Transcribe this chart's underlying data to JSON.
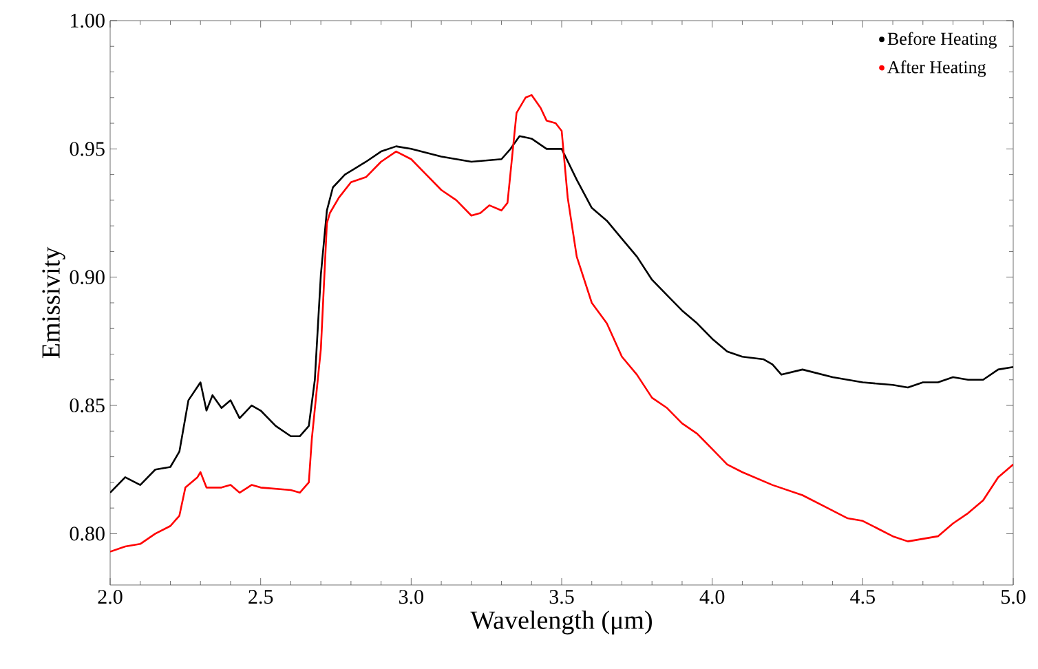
{
  "chart_data": {
    "type": "line",
    "xlabel": "Wavelength (μm)",
    "ylabel": "Emissivity",
    "xlim": [
      2.0,
      5.0
    ],
    "ylim": [
      0.78,
      1.0
    ],
    "xticks": [
      {
        "value": 2.0,
        "label": "2.0"
      },
      {
        "value": 2.5,
        "label": "2.5"
      },
      {
        "value": 3.0,
        "label": "3.0"
      },
      {
        "value": 3.5,
        "label": "3.5"
      },
      {
        "value": 4.0,
        "label": "4.0"
      },
      {
        "value": 4.5,
        "label": "4.5"
      },
      {
        "value": 5.0,
        "label": "5.0"
      }
    ],
    "yticks": [
      {
        "value": 0.8,
        "label": "0.80"
      },
      {
        "value": 0.85,
        "label": "0.85"
      },
      {
        "value": 0.9,
        "label": "0.90"
      },
      {
        "value": 0.95,
        "label": "0.95"
      },
      {
        "value": 1.0,
        "label": "1.00"
      }
    ],
    "grid": false,
    "legend": "top right",
    "marker": "none",
    "line_style": "solid",
    "series": [
      {
        "name": "Before Heating",
        "color": "#000000",
        "x": [
          2.0,
          2.05,
          2.1,
          2.15,
          2.2,
          2.23,
          2.26,
          2.3,
          2.32,
          2.34,
          2.37,
          2.4,
          2.43,
          2.47,
          2.5,
          2.55,
          2.6,
          2.63,
          2.66,
          2.68,
          2.7,
          2.72,
          2.74,
          2.78,
          2.85,
          2.9,
          2.95,
          3.0,
          3.1,
          3.2,
          3.3,
          3.33,
          3.36,
          3.4,
          3.45,
          3.5,
          3.55,
          3.6,
          3.65,
          3.7,
          3.75,
          3.8,
          3.85,
          3.9,
          3.95,
          4.0,
          4.05,
          4.1,
          4.17,
          4.2,
          4.23,
          4.3,
          4.4,
          4.5,
          4.6,
          4.65,
          4.7,
          4.75,
          4.8,
          4.85,
          4.9,
          4.95,
          5.0
        ],
        "values": [
          0.816,
          0.822,
          0.819,
          0.825,
          0.826,
          0.832,
          0.852,
          0.859,
          0.848,
          0.854,
          0.849,
          0.852,
          0.845,
          0.85,
          0.848,
          0.842,
          0.838,
          0.838,
          0.842,
          0.86,
          0.901,
          0.926,
          0.935,
          0.94,
          0.945,
          0.949,
          0.951,
          0.95,
          0.947,
          0.945,
          0.946,
          0.95,
          0.955,
          0.954,
          0.95,
          0.95,
          0.938,
          0.927,
          0.922,
          0.915,
          0.908,
          0.899,
          0.893,
          0.887,
          0.882,
          0.876,
          0.871,
          0.869,
          0.868,
          0.866,
          0.862,
          0.864,
          0.861,
          0.859,
          0.858,
          0.857,
          0.859,
          0.859,
          0.861,
          0.86,
          0.86,
          0.864,
          0.865
        ]
      },
      {
        "name": "After Heating",
        "color": "#ff0000",
        "x": [
          2.0,
          2.05,
          2.1,
          2.15,
          2.2,
          2.23,
          2.25,
          2.29,
          2.3,
          2.32,
          2.37,
          2.4,
          2.43,
          2.47,
          2.5,
          2.6,
          2.63,
          2.66,
          2.67,
          2.7,
          2.72,
          2.73,
          2.76,
          2.8,
          2.85,
          2.9,
          2.95,
          3.0,
          3.05,
          3.1,
          3.15,
          3.2,
          3.23,
          3.26,
          3.3,
          3.32,
          3.35,
          3.38,
          3.4,
          3.43,
          3.45,
          3.48,
          3.5,
          3.52,
          3.55,
          3.6,
          3.65,
          3.7,
          3.75,
          3.8,
          3.85,
          3.9,
          3.95,
          4.0,
          4.05,
          4.1,
          4.2,
          4.3,
          4.4,
          4.45,
          4.5,
          4.55,
          4.6,
          4.65,
          4.7,
          4.75,
          4.8,
          4.85,
          4.9,
          4.95,
          5.0
        ],
        "values": [
          0.793,
          0.795,
          0.796,
          0.8,
          0.803,
          0.807,
          0.818,
          0.822,
          0.824,
          0.818,
          0.818,
          0.819,
          0.816,
          0.819,
          0.818,
          0.817,
          0.816,
          0.82,
          0.837,
          0.872,
          0.921,
          0.925,
          0.931,
          0.937,
          0.939,
          0.945,
          0.949,
          0.946,
          0.94,
          0.934,
          0.93,
          0.924,
          0.925,
          0.928,
          0.926,
          0.929,
          0.964,
          0.97,
          0.971,
          0.966,
          0.961,
          0.96,
          0.957,
          0.931,
          0.908,
          0.89,
          0.882,
          0.869,
          0.862,
          0.853,
          0.849,
          0.843,
          0.839,
          0.833,
          0.827,
          0.824,
          0.819,
          0.815,
          0.809,
          0.806,
          0.805,
          0.802,
          0.799,
          0.797,
          0.798,
          0.799,
          0.804,
          0.808,
          0.813,
          0.822,
          0.827
        ]
      }
    ]
  }
}
